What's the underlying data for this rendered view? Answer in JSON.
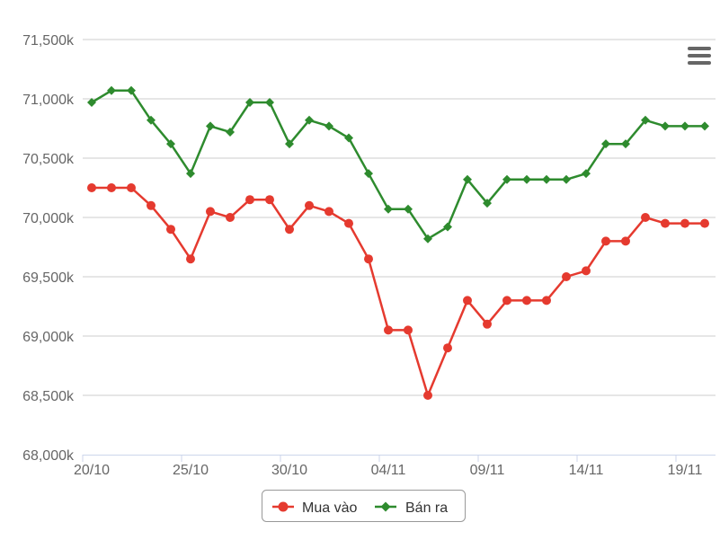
{
  "chart_data": {
    "type": "line",
    "title": "",
    "xlabel": "",
    "ylabel": "",
    "ylim": [
      68000,
      71500
    ],
    "yticks": [
      {
        "value": 68000,
        "label": "68,000k"
      },
      {
        "value": 68500,
        "label": "68,500k"
      },
      {
        "value": 69000,
        "label": "69,000k"
      },
      {
        "value": 69500,
        "label": "69,500k"
      },
      {
        "value": 70000,
        "label": "70,000k"
      },
      {
        "value": 70500,
        "label": "70,500k"
      },
      {
        "value": 71000,
        "label": "71,000k"
      },
      {
        "value": 71500,
        "label": "71,500k"
      }
    ],
    "x": [
      "20/10",
      "21/10",
      "22/10",
      "23/10",
      "24/10",
      "25/10",
      "26/10",
      "27/10",
      "28/10",
      "29/10",
      "30/10",
      "31/10",
      "01/11",
      "02/11",
      "03/11",
      "04/11",
      "05/11",
      "06/11",
      "07/11",
      "08/11",
      "09/11",
      "10/11",
      "11/11",
      "12/11",
      "13/11",
      "14/11",
      "15/11",
      "16/11",
      "17/11",
      "18/11",
      "19/11",
      "20/11"
    ],
    "xticks": [
      {
        "index": 0,
        "label": "20/10"
      },
      {
        "index": 5,
        "label": "25/10"
      },
      {
        "index": 10,
        "label": "30/10"
      },
      {
        "index": 15,
        "label": "04/11"
      },
      {
        "index": 20,
        "label": "09/11"
      },
      {
        "index": 25,
        "label": "14/11"
      },
      {
        "index": 30,
        "label": "19/11"
      }
    ],
    "grid": true,
    "legend_position": "bottom-center",
    "series": [
      {
        "name": "Mua vào",
        "color": "#e53a2f",
        "marker": "circle",
        "values": [
          70250,
          70250,
          70250,
          70100,
          69900,
          69650,
          70050,
          70000,
          70150,
          70150,
          69900,
          70100,
          70050,
          69950,
          69650,
          69050,
          69050,
          68500,
          68900,
          69300,
          69100,
          69300,
          69300,
          69300,
          69500,
          69550,
          69800,
          69800,
          70000,
          69950,
          69950,
          69950
        ]
      },
      {
        "name": "Bán ra",
        "color": "#2e8b2e",
        "marker": "diamond",
        "values": [
          70970,
          71070,
          71070,
          70820,
          70620,
          70370,
          70770,
          70720,
          70970,
          70970,
          70620,
          70820,
          70770,
          70670,
          70370,
          70070,
          70070,
          69820,
          69920,
          70320,
          70120,
          70320,
          70320,
          70320,
          70320,
          70370,
          70620,
          70620,
          70820,
          70770,
          70770,
          70770
        ]
      }
    ]
  },
  "menu": {
    "icon": "hamburger-menu-icon"
  }
}
